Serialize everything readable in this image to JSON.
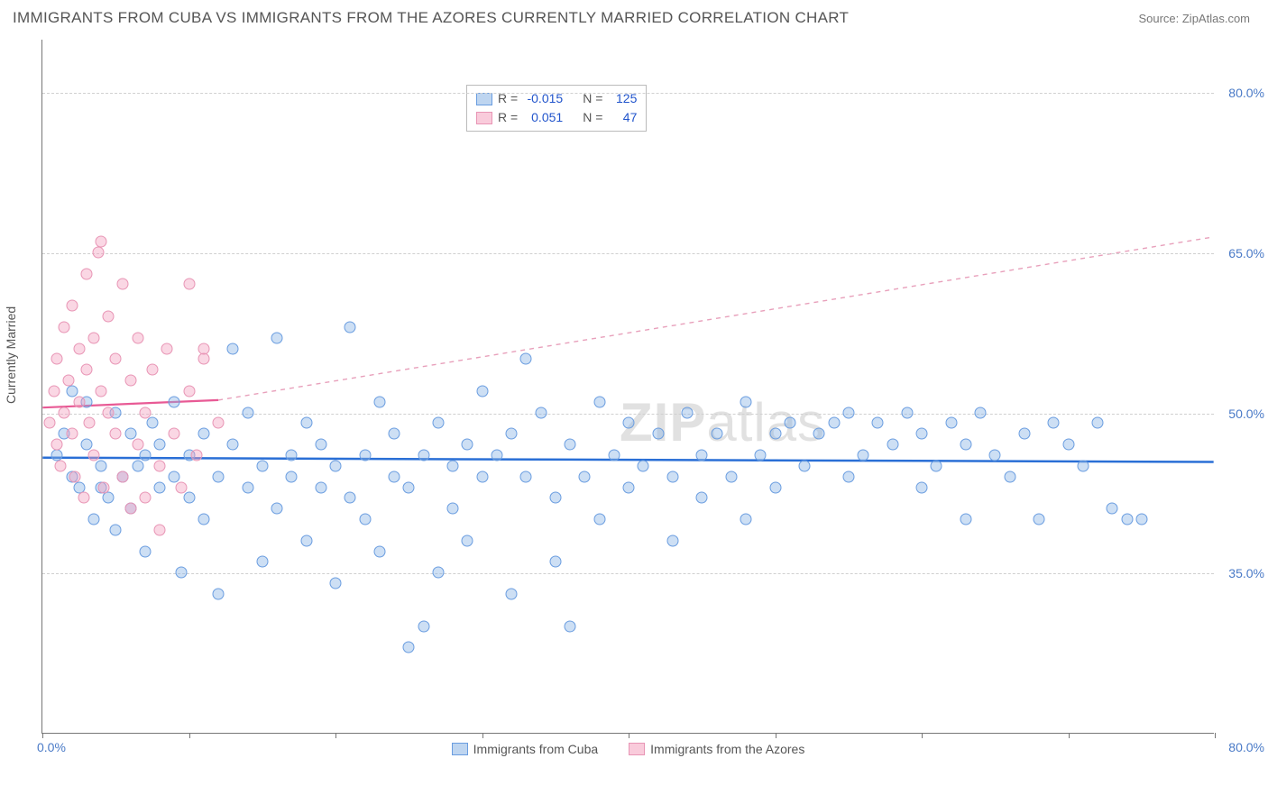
{
  "title": "IMMIGRANTS FROM CUBA VS IMMIGRANTS FROM THE AZORES CURRENTLY MARRIED CORRELATION CHART",
  "source": "Source: ZipAtlas.com",
  "watermark": "ZIPatlas",
  "chart": {
    "type": "scatter",
    "y_axis_title": "Currently Married",
    "x_range": [
      0,
      80
    ],
    "y_range": [
      20,
      85
    ],
    "y_ticks": [
      35.0,
      50.0,
      65.0,
      80.0
    ],
    "y_tick_labels": [
      "35.0%",
      "50.0%",
      "65.0%",
      "80.0%"
    ],
    "y_tick_gridline": [
      true,
      true,
      true,
      true
    ],
    "x_ticks": [
      0,
      10,
      20,
      30,
      40,
      50,
      60,
      70,
      80
    ],
    "x_origin_label": "0.0%",
    "x_max_label": "80.0%",
    "grid_color": "#d0d0d0",
    "axis_color": "#777777",
    "background_color": "#ffffff",
    "y_label_color": "#4a7ac7"
  },
  "series": [
    {
      "key": "cuba",
      "label": "Immigrants from Cuba",
      "swatch_fill": "rgba(137,178,228,0.55)",
      "swatch_border": "#6a9de0",
      "point_fill": "rgba(137,178,228,0.42)",
      "point_border": "#6a9de0",
      "R_label": "R =",
      "R_value": "-0.015",
      "N_label": "N =",
      "N_value": "125",
      "trend": {
        "x1": 0,
        "y1": 45.8,
        "x2": 80,
        "y2": 45.4,
        "color": "#2a6fd6",
        "width": 2.5,
        "dash": "none"
      },
      "points": [
        [
          1,
          46
        ],
        [
          1.5,
          48
        ],
        [
          2,
          44
        ],
        [
          2,
          52
        ],
        [
          2.5,
          43
        ],
        [
          3,
          47
        ],
        [
          3,
          51
        ],
        [
          3.5,
          40
        ],
        [
          4,
          45
        ],
        [
          4,
          43
        ],
        [
          4.5,
          42
        ],
        [
          5,
          50
        ],
        [
          5,
          39
        ],
        [
          5.5,
          44
        ],
        [
          6,
          48
        ],
        [
          6,
          41
        ],
        [
          6.5,
          45
        ],
        [
          7,
          46
        ],
        [
          7,
          37
        ],
        [
          7.5,
          49
        ],
        [
          8,
          43
        ],
        [
          8,
          47
        ],
        [
          9,
          44
        ],
        [
          9,
          51
        ],
        [
          9.5,
          35
        ],
        [
          10,
          46
        ],
        [
          10,
          42
        ],
        [
          11,
          48
        ],
        [
          11,
          40
        ],
        [
          12,
          44
        ],
        [
          12,
          33
        ],
        [
          13,
          56
        ],
        [
          13,
          47
        ],
        [
          14,
          43
        ],
        [
          14,
          50
        ],
        [
          15,
          45
        ],
        [
          15,
          36
        ],
        [
          16,
          57
        ],
        [
          16,
          41
        ],
        [
          17,
          46
        ],
        [
          17,
          44
        ],
        [
          18,
          49
        ],
        [
          18,
          38
        ],
        [
          19,
          43
        ],
        [
          19,
          47
        ],
        [
          20,
          45
        ],
        [
          20,
          34
        ],
        [
          21,
          58
        ],
        [
          21,
          42
        ],
        [
          22,
          46
        ],
        [
          22,
          40
        ],
        [
          23,
          51
        ],
        [
          23,
          37
        ],
        [
          24,
          48
        ],
        [
          24,
          44
        ],
        [
          25,
          43
        ],
        [
          25,
          28
        ],
        [
          26,
          46
        ],
        [
          26,
          30
        ],
        [
          27,
          49
        ],
        [
          27,
          35
        ],
        [
          28,
          45
        ],
        [
          28,
          41
        ],
        [
          29,
          47
        ],
        [
          29,
          38
        ],
        [
          30,
          44
        ],
        [
          30,
          52
        ],
        [
          31,
          46
        ],
        [
          32,
          33
        ],
        [
          32,
          48
        ],
        [
          33,
          44
        ],
        [
          33,
          55
        ],
        [
          34,
          50
        ],
        [
          35,
          42
        ],
        [
          35,
          36
        ],
        [
          36,
          47
        ],
        [
          36,
          30
        ],
        [
          37,
          44
        ],
        [
          38,
          51
        ],
        [
          38,
          40
        ],
        [
          39,
          46
        ],
        [
          40,
          43
        ],
        [
          40,
          49
        ],
        [
          41,
          45
        ],
        [
          42,
          48
        ],
        [
          43,
          44
        ],
        [
          43,
          38
        ],
        [
          44,
          50
        ],
        [
          45,
          46
        ],
        [
          45,
          42
        ],
        [
          46,
          48
        ],
        [
          47,
          44
        ],
        [
          48,
          40
        ],
        [
          48,
          51
        ],
        [
          49,
          46
        ],
        [
          50,
          43
        ],
        [
          50,
          48
        ],
        [
          51,
          49
        ],
        [
          52,
          45
        ],
        [
          53,
          48
        ],
        [
          54,
          49
        ],
        [
          55,
          44
        ],
        [
          55,
          50
        ],
        [
          56,
          46
        ],
        [
          57,
          49
        ],
        [
          58,
          47
        ],
        [
          59,
          50
        ],
        [
          60,
          43
        ],
        [
          60,
          48
        ],
        [
          61,
          45
        ],
        [
          62,
          49
        ],
        [
          63,
          47
        ],
        [
          63,
          40
        ],
        [
          64,
          50
        ],
        [
          65,
          46
        ],
        [
          66,
          44
        ],
        [
          67,
          48
        ],
        [
          68,
          40
        ],
        [
          69,
          49
        ],
        [
          70,
          47
        ],
        [
          71,
          45
        ],
        [
          72,
          49
        ],
        [
          73,
          41
        ],
        [
          74,
          40
        ],
        [
          75,
          40
        ]
      ]
    },
    {
      "key": "azores",
      "label": "Immigrants from the Azores",
      "swatch_fill": "rgba(244,160,190,0.55)",
      "swatch_border": "#e895b5",
      "point_fill": "rgba(244,160,190,0.42)",
      "point_border": "#e895b5",
      "R_label": "R =",
      "R_value": "0.051",
      "N_label": "N =",
      "N_value": "47",
      "trend_solid": {
        "x1": 0,
        "y1": 50.5,
        "x2": 12,
        "y2": 51.2,
        "color": "#e85a95",
        "width": 2.2,
        "dash": "none"
      },
      "trend_dashed": {
        "x1": 12,
        "y1": 51.2,
        "x2": 80,
        "y2": 66.5,
        "color": "#e8a0bb",
        "width": 1.4,
        "dash": "5,5"
      },
      "points": [
        [
          0.5,
          49
        ],
        [
          0.8,
          52
        ],
        [
          1,
          47
        ],
        [
          1,
          55
        ],
        [
          1.2,
          45
        ],
        [
          1.5,
          58
        ],
        [
          1.5,
          50
        ],
        [
          1.8,
          53
        ],
        [
          2,
          48
        ],
        [
          2,
          60
        ],
        [
          2.2,
          44
        ],
        [
          2.5,
          56
        ],
        [
          2.5,
          51
        ],
        [
          2.8,
          42
        ],
        [
          3,
          63
        ],
        [
          3,
          54
        ],
        [
          3.2,
          49
        ],
        [
          3.5,
          57
        ],
        [
          3.5,
          46
        ],
        [
          3.8,
          65
        ],
        [
          4,
          52
        ],
        [
          4,
          66
        ],
        [
          4.2,
          43
        ],
        [
          4.5,
          59
        ],
        [
          4.5,
          50
        ],
        [
          5,
          55
        ],
        [
          5,
          48
        ],
        [
          5.5,
          62
        ],
        [
          5.5,
          44
        ],
        [
          6,
          53
        ],
        [
          6,
          41
        ],
        [
          6.5,
          57
        ],
        [
          6.5,
          47
        ],
        [
          7,
          50
        ],
        [
          7,
          42
        ],
        [
          7.5,
          54
        ],
        [
          8,
          45
        ],
        [
          8,
          39
        ],
        [
          8.5,
          56
        ],
        [
          9,
          48
        ],
        [
          9.5,
          43
        ],
        [
          10,
          52
        ],
        [
          10,
          62
        ],
        [
          10.5,
          46
        ],
        [
          11,
          55
        ],
        [
          11,
          56
        ],
        [
          12,
          49
        ]
      ]
    }
  ]
}
